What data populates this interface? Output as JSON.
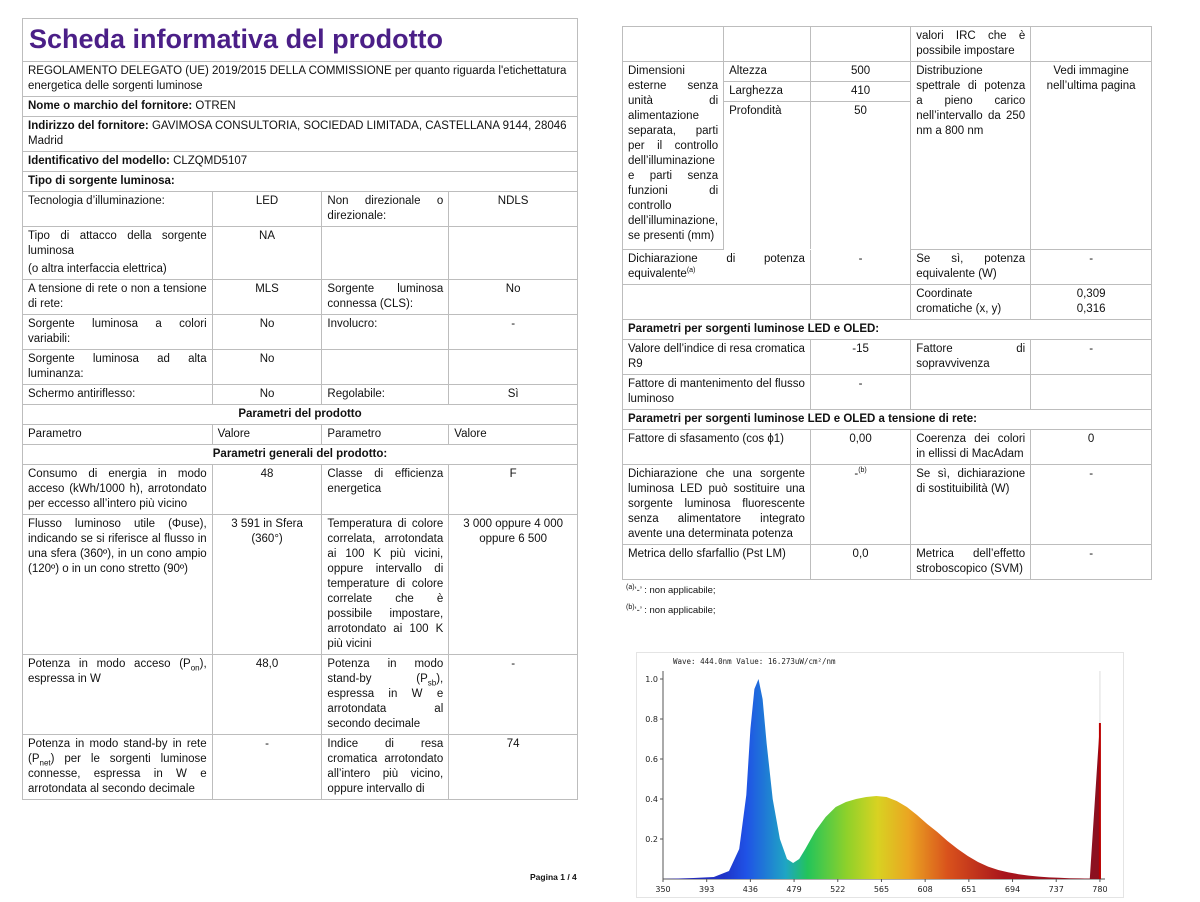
{
  "left": {
    "title": "Scheda informativa del prodotto",
    "regulation": "REGOLAMENTO DELEGATO (UE) 2019/2015 DELLA COMMISSIONE per quanto riguarda l'etichettatura energetica delle sorgenti luminose",
    "supplier_name_label": "Nome o marchio del fornitore:",
    "supplier_name_value": "OTREN",
    "supplier_address_label": "Indirizzo del fornitore:",
    "supplier_address_value": "GAVIMOSA CONSULTORIA, SOCIEDAD LIMITADA, CASTELLANA 9144, 28046 Madrid",
    "model_label": "Identificativo del modello:",
    "model_value": "CLZQMD5107",
    "source_type_header": "Tipo di sorgente luminosa:",
    "tech_label": "Tecnologia d’illuminazione:",
    "tech_value": "LED",
    "nondir_label": "Non direzionale o direzionale:",
    "nondir_value": "NDLS",
    "attacco_label": "Tipo di attacco della sorgente luminosa",
    "attacco_label2": "(o altra interfaccia elettrica)",
    "attacco_value": "NA",
    "mains_label": "A tensione di rete o non a tensione di rete:",
    "mains_value": "MLS",
    "cls_label": "Sorgente luminosa connessa (CLS):",
    "cls_value": "No",
    "color_label": "Sorgente luminosa a colori variabili:",
    "color_value": "No",
    "involucro_label": "Involucro:",
    "involucro_value": "-",
    "highlum_label": "Sorgente luminosa ad alta luminanza:",
    "highlum_value": "No",
    "antiglare_label": "Schermo antiriflesso:",
    "antiglare_value": "No",
    "dimmable_label": "Regolabile:",
    "dimmable_value": "Sì",
    "product_params_header": "Parametri del prodotto",
    "col_param": "Parametro",
    "col_value": "Valore",
    "general_params_header": "Parametri generali del prodotto:",
    "energy_label": "Consumo di energia in modo acceso (kWh/1000 h), arrotondato per eccesso all’intero più vicino",
    "energy_value": "48",
    "class_label": "Classe di efficienza energetica",
    "class_value": "F",
    "flux_label": "Flusso luminoso utile (Φuse), indicando se si riferisce al flusso in una sfera (360º), in un cono ampio (120º) o in un cono stretto (90º)",
    "flux_value": "3 591 in Sfera (360°)",
    "cct_label": "Temperatura di colore correlata, arrotondata ai 100 K più vicini, oppure intervallo di temperature di colore correlate che è possibile impostare, arrotondato ai 100 K più vicini",
    "cct_value": "3 000 oppure 4 000 oppure 6 500",
    "pon_label_a": "Potenza in modo acceso (P",
    "pon_label_sub": "on",
    "pon_label_b": "), espressa in W",
    "pon_value": "48,0",
    "psb_label_a": "Potenza in modo stand-by (P",
    "psb_label_sub": "sb",
    "psb_label_b": "), espressa in W e arrotondata al secondo decimale",
    "psb_value": "-",
    "pnet_label_a": "Potenza in modo stand-by in rete (P",
    "pnet_label_sub": "net",
    "pnet_label_b": ") per le sorgenti luminose connesse, espressa in W e arrotondata al secondo decimale",
    "pnet_value": "-",
    "cri_label": "Indice di resa cromatica arrotondato all’intero più vicino, oppure intervallo di",
    "cri_value": "74",
    "page_number": "Pagina 1 / 4"
  },
  "right": {
    "irc_cont": "valori IRC che è possibile impostare",
    "dim_label": "Dimensioni esterne senza unità di alimentazione separata, parti per il controllo dell’illuminazione e parti senza funzioni di controllo dell’illuminazione, se presenti (mm)",
    "height_label": "Altezza",
    "height_value": "500",
    "width_label": "Larghezza",
    "width_value": "410",
    "depth_label": "Profondità",
    "depth_value": "50",
    "spd_label": "Distribuzione spettrale di potenza a pieno carico nell’intervallo da 250 nm a 800 nm",
    "spd_value": "Vedi immagine nell’ultima pagina",
    "equiv_label": "Dichiarazione di potenza equivalente",
    "equiv_sup": "(a)",
    "equiv_value": "-",
    "equiv_yes_label": "Se sì, potenza equivalente (W)",
    "equiv_yes_value": "-",
    "chroma_label": "Coordinate cromatiche (x, y)",
    "chroma_x": "0,309",
    "chroma_y": "0,316",
    "led_header": "Parametri per sorgenti luminose LED e OLED:",
    "r9_label": "Valore dell’indice di resa cromatica R9",
    "r9_value": "-15",
    "survival_label": "Fattore di sopravvivenza",
    "survival_value": "-",
    "maint_label": "Fattore di mantenimento del flusso luminoso",
    "maint_value": "-",
    "mains_header": "Parametri per sorgenti luminose LED e OLED a tensione di rete:",
    "cosphi_label": "Fattore di sfasamento (cos ϕ1)",
    "cosphi_value": "0,00",
    "macadam_label": "Coerenza dei colori in ellissi di MacAdam",
    "macadam_value": "0",
    "replace_label": "Dichiarazione che una sorgente luminosa LED può sostituire una sorgente luminosa fluorescente senza alimentatore integrato avente una determinata potenza",
    "replace_value": "-",
    "replace_sup": "(b)",
    "replace_yes_label": "Se sì, dichiarazione di sostituibilità (W)",
    "replace_yes_value": "-",
    "flicker_label": "Metrica dello sfarfallio (Pst LM)",
    "flicker_value": "0,0",
    "strobo_label": "Metrica dell’effetto stroboscopico (SVM)",
    "strobo_value": "-",
    "footnote_a_mark": "(a)",
    "footnote_a_text": "‘-’ : non applicabile;",
    "footnote_b_mark": "(b)",
    "footnote_b_text": "‘-’ : non applicabile;"
  },
  "chart_data": {
    "type": "area",
    "title": "Wave: 444.0nm Value: 16.273uW/cm²/nm",
    "xlabel": "",
    "ylabel": "",
    "x_ticks": [
      "350",
      "393",
      "436",
      "479",
      "522",
      "565",
      "608",
      "651",
      "694",
      "737",
      "780"
    ],
    "y_ticks": [
      "0.2",
      "0.4",
      "0.6",
      "0.8",
      "1.0"
    ],
    "xlim": [
      350,
      785
    ],
    "ylim": [
      0,
      1.0
    ],
    "x": [
      350,
      380,
      400,
      415,
      425,
      432,
      436,
      440,
      444,
      448,
      452,
      458,
      465,
      472,
      478,
      484,
      490,
      500,
      510,
      520,
      530,
      540,
      550,
      560,
      570,
      580,
      590,
      600,
      610,
      620,
      630,
      640,
      650,
      660,
      670,
      680,
      690,
      700,
      710,
      720,
      730,
      740,
      750,
      760,
      770,
      780,
      781
    ],
    "values": [
      0,
      0.005,
      0.01,
      0.04,
      0.15,
      0.42,
      0.75,
      0.95,
      1.0,
      0.9,
      0.68,
      0.4,
      0.2,
      0.1,
      0.08,
      0.1,
      0.15,
      0.24,
      0.31,
      0.36,
      0.385,
      0.4,
      0.41,
      0.415,
      0.41,
      0.39,
      0.36,
      0.32,
      0.275,
      0.235,
      0.19,
      0.15,
      0.115,
      0.085,
      0.062,
      0.045,
      0.033,
      0.024,
      0.017,
      0.012,
      0.008,
      0.006,
      0.004,
      0.003,
      0.002,
      0.78,
      0
    ],
    "marker_line_x": 780,
    "grid": false,
    "legend": "none"
  }
}
